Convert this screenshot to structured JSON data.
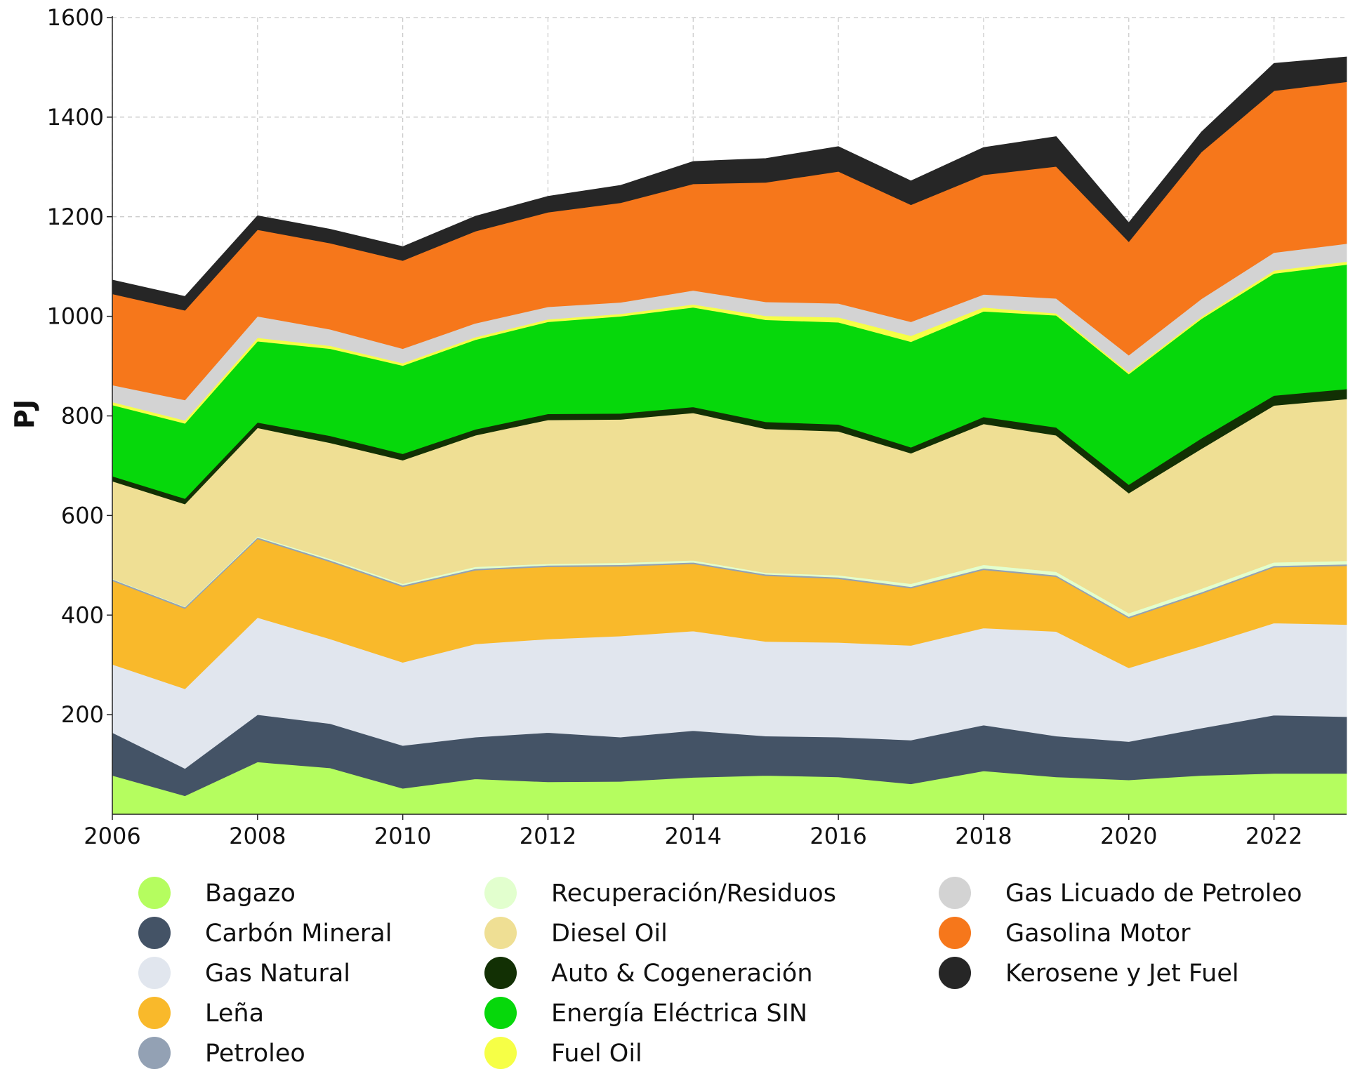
{
  "chart_data": {
    "type": "area",
    "stacked": true,
    "title": "",
    "xlabel": "",
    "ylabel": "PJ",
    "xlim": [
      2006,
      2023
    ],
    "ylim": [
      0,
      1600
    ],
    "yticks": [
      200,
      400,
      600,
      800,
      1000,
      1200,
      1400,
      1600
    ],
    "xticks": [
      2006,
      2008,
      2010,
      2012,
      2014,
      2016,
      2018,
      2020,
      2022
    ],
    "grid": true,
    "legend_position": "bottom",
    "x": [
      2006,
      2007,
      2008,
      2009,
      2010,
      2011,
      2012,
      2013,
      2014,
      2015,
      2016,
      2017,
      2018,
      2019,
      2020,
      2021,
      2022,
      2023
    ],
    "series": [
      {
        "name": "Bagazo",
        "color": "#b5fd5f",
        "values": [
          78,
          37,
          105,
          93,
          52,
          71,
          65,
          66,
          74,
          78,
          75,
          61,
          87,
          75,
          69,
          78,
          82,
          82
        ]
      },
      {
        "name": "Carbón Mineral",
        "color": "#445366",
        "values": [
          86,
          55,
          95,
          89,
          86,
          84,
          99,
          89,
          94,
          79,
          80,
          88,
          92,
          82,
          77,
          95,
          117,
          114
        ]
      },
      {
        "name": "Gas Natural",
        "color": "#e1e6ee",
        "values": [
          137,
          160,
          195,
          170,
          167,
          187,
          188,
          203,
          200,
          190,
          190,
          190,
          195,
          210,
          148,
          165,
          185,
          185
        ]
      },
      {
        "name": "Leña",
        "color": "#f9b92b",
        "values": [
          168,
          161,
          158,
          155,
          152,
          148,
          145,
          140,
          135,
          132,
          128,
          115,
          117,
          110,
          100,
          105,
          112,
          118
        ]
      },
      {
        "name": "Petroleo",
        "color": "#93a1b4",
        "values": [
          3,
          3,
          3,
          3,
          3,
          3,
          3,
          3,
          3,
          3,
          3,
          3,
          3,
          3,
          3,
          3,
          3,
          3
        ]
      },
      {
        "name": "Recuperación/Residuos",
        "color": "#e2ffce",
        "values": [
          1,
          1,
          2,
          3,
          3,
          4,
          3,
          4,
          4,
          3,
          4,
          6,
          7,
          7,
          7,
          7,
          7,
          7
        ]
      },
      {
        "name": "Diesel Oil",
        "color": "#efdf94",
        "values": [
          196,
          206,
          218,
          233,
          248,
          264,
          289,
          288,
          296,
          289,
          289,
          262,
          283,
          274,
          241,
          281,
          315,
          325
        ]
      },
      {
        "name": "Auto & Cogeneración",
        "color": "#123004",
        "values": [
          10,
          11,
          11,
          14,
          13,
          12,
          12,
          12,
          12,
          14,
          14,
          12,
          14,
          16,
          17,
          21,
          20,
          20
        ]
      },
      {
        "name": "Energía Eléctrica SIN",
        "color": "#06d80b",
        "values": [
          143,
          151,
          163,
          175,
          177,
          180,
          185,
          195,
          200,
          205,
          205,
          212,
          212,
          225,
          222,
          240,
          245,
          250
        ]
      },
      {
        "name": "Fuel Oil",
        "color": "#f6ff46",
        "values": [
          6,
          6,
          7,
          6,
          5,
          5,
          5,
          5,
          6,
          8,
          10,
          12,
          8,
          4,
          4,
          4,
          6,
          6
        ]
      },
      {
        "name": "Gas Licuado de Petroleo",
        "color": "#d3d3d3",
        "values": [
          34,
          41,
          43,
          33,
          29,
          28,
          25,
          23,
          28,
          28,
          28,
          28,
          26,
          30,
          34,
          36,
          36,
          36
        ]
      },
      {
        "name": "Gasolina Motor",
        "color": "#f6771b",
        "values": [
          183,
          180,
          174,
          173,
          177,
          185,
          190,
          200,
          214,
          240,
          265,
          235,
          240,
          265,
          228,
          295,
          325,
          325
        ]
      },
      {
        "name": "Kerosene y Jet Fuel",
        "color": "#262626",
        "values": [
          28,
          28,
          28,
          28,
          28,
          30,
          32,
          35,
          45,
          48,
          50,
          48,
          55,
          60,
          38,
          40,
          55,
          50
        ]
      }
    ]
  }
}
